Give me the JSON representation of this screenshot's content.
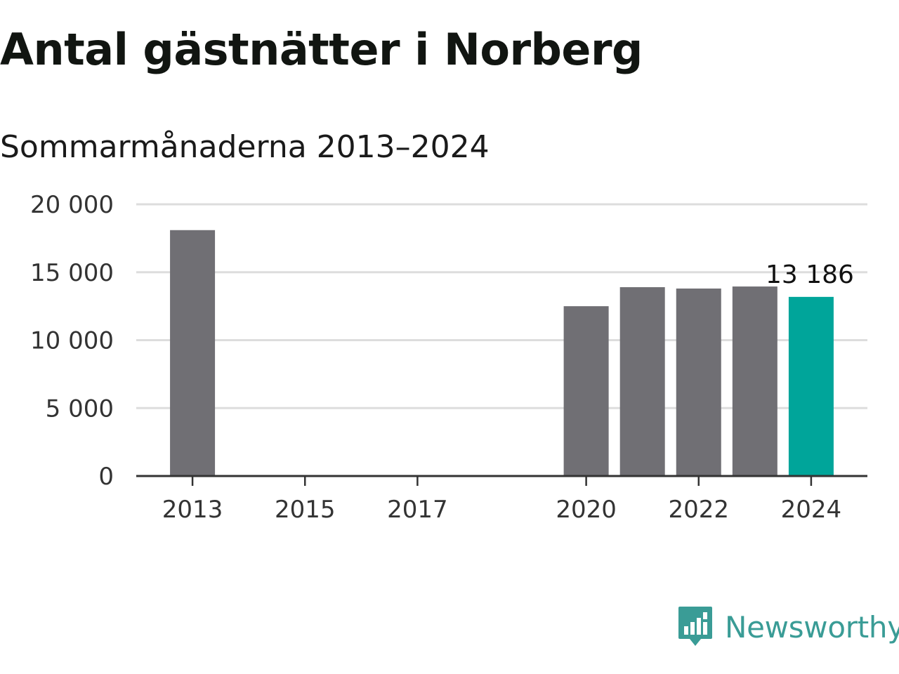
{
  "title": "Antal gästnätter i Norberg",
  "subtitle": "Sommarmånaderna 2013–2024",
  "brand": {
    "name": "Newsworthy",
    "icon": "newsworthy-logo-icon",
    "color": "#3a9c96"
  },
  "chart_data": {
    "type": "bar",
    "x": [
      2013,
      2020,
      2021,
      2022,
      2023,
      2024
    ],
    "values": [
      18100,
      12500,
      13900,
      13800,
      13950,
      13186
    ],
    "highlight_index": 5,
    "highlight_label": "13 186",
    "xticks": [
      2013,
      2015,
      2017,
      2020,
      2022,
      2024
    ],
    "xtick_labels": [
      "2013",
      "2015",
      "2017",
      "2020",
      "2022",
      "2024"
    ],
    "xlim": [
      2012,
      2025
    ],
    "yticks": [
      0,
      5000,
      10000,
      15000,
      20000
    ],
    "ytick_labels": [
      "0",
      "5 000",
      "10 000",
      "15 000",
      "20 000"
    ],
    "ylim": [
      0,
      20000
    ],
    "grid": true,
    "colors": {
      "bar": "#706f74",
      "highlight": "#00a59a",
      "grid": "#dddddd",
      "axis": "#333333"
    }
  }
}
